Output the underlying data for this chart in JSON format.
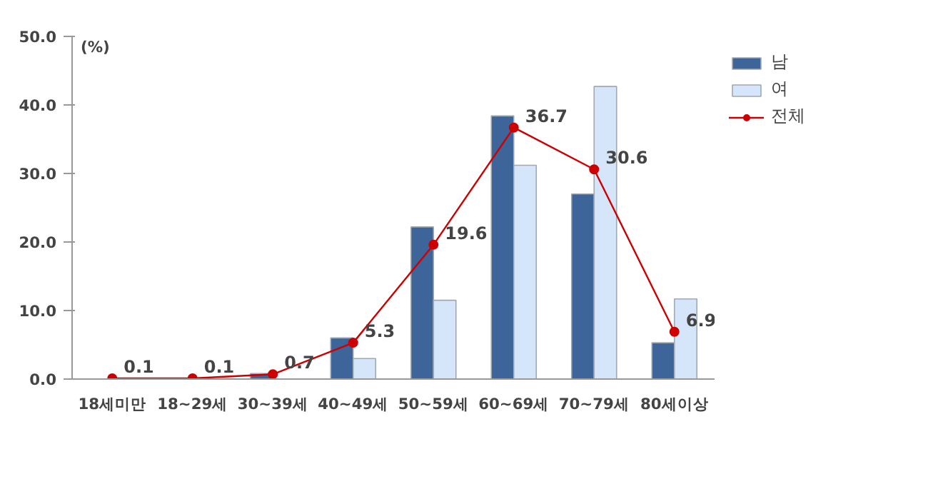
{
  "chart_data": {
    "type": "bar",
    "ylabel": "(%)",
    "categories": [
      "18세미만",
      "18~29세",
      "30~39세",
      "40~49세",
      "50~59세",
      "60~69세",
      "70~79세",
      "80세이상"
    ],
    "series": [
      {
        "name": "남",
        "color": "#3d6599",
        "values": [
          null,
          null,
          0.8,
          6.0,
          22.2,
          38.4,
          27.0,
          5.3
        ]
      },
      {
        "name": "여",
        "color": "#d6e6fa",
        "values": [
          null,
          null,
          null,
          3.0,
          11.5,
          31.2,
          42.7,
          11.7
        ]
      },
      {
        "name": "전체",
        "type": "line",
        "color": "#cc0000",
        "marker": "circle",
        "values": [
          0.1,
          0.1,
          0.7,
          5.3,
          19.6,
          36.7,
          30.6,
          6.9
        ],
        "value_labels": [
          "0.1",
          "0.1",
          "0.7",
          "5.3",
          "19.6",
          "36.7",
          "30.6",
          "6.9"
        ]
      }
    ],
    "ylim": [
      0,
      50
    ],
    "yticks": [
      {
        "value": 0,
        "label": "0.0"
      },
      {
        "value": 10,
        "label": "10.0"
      },
      {
        "value": 20,
        "label": "20.0"
      },
      {
        "value": 30,
        "label": "30.0"
      },
      {
        "value": 40,
        "label": "40.0"
      },
      {
        "value": 50,
        "label": "50.0"
      }
    ],
    "grid": false,
    "legend": "top right"
  }
}
